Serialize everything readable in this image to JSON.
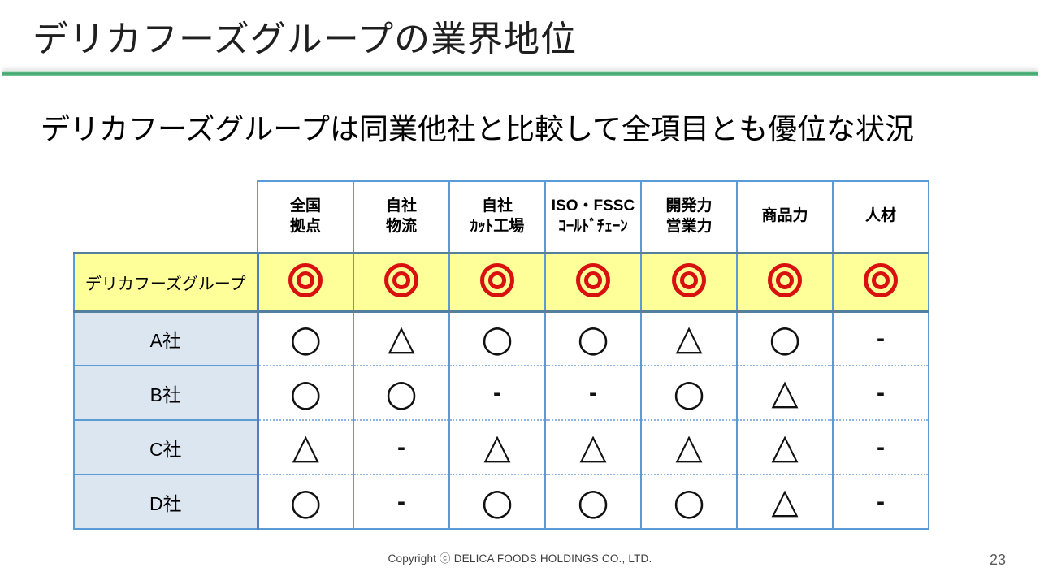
{
  "page": {
    "title": "デリカフーズグループの業界地位",
    "subtitle": "デリカフーズグループは同業他社と比較して全項目とも優位な状況",
    "footer": "Copyright ⓒ DELICA FOODS HOLDINGS CO., LTD.",
    "page_number": "23"
  },
  "colors": {
    "divider_green": "#3da46c",
    "table_border_blue": "#5b9bd5",
    "row_label_fill": "#dce6f1",
    "highlight_yellow": "#ffff99",
    "highlight_border": "#54809f",
    "dotted_separator": "#8db4e2",
    "double_circle_red": "#d81010",
    "symbol_black": "#111111"
  },
  "table": {
    "columns": [
      {
        "lines": [
          "全国",
          "拠点"
        ]
      },
      {
        "lines": [
          "自社",
          "物流"
        ]
      },
      {
        "lines": [
          "自社",
          "ｶｯﾄ工場"
        ]
      },
      {
        "lines": [
          "ISO・FSSC",
          "ｺｰﾙﾄﾞﾁｪｰﾝ"
        ]
      },
      {
        "lines": [
          "開発力",
          "営業力"
        ]
      },
      {
        "lines": [
          "商品力"
        ]
      },
      {
        "lines": [
          "人材"
        ]
      }
    ],
    "rows": [
      {
        "label": "デリカフーズグループ",
        "highlight": true,
        "values": [
          "◎",
          "◎",
          "◎",
          "◎",
          "◎",
          "◎",
          "◎"
        ]
      },
      {
        "label": "A社",
        "highlight": false,
        "values": [
          "○",
          "△",
          "○",
          "○",
          "△",
          "○",
          "-"
        ]
      },
      {
        "label": "B社",
        "highlight": false,
        "values": [
          "○",
          "○",
          "-",
          "-",
          "○",
          "△",
          "-"
        ]
      },
      {
        "label": "C社",
        "highlight": false,
        "values": [
          "△",
          "-",
          "△",
          "△",
          "△",
          "△",
          "-"
        ]
      },
      {
        "label": "D社",
        "highlight": false,
        "values": [
          "○",
          "-",
          "○",
          "○",
          "○",
          "△",
          "-"
        ]
      }
    ]
  }
}
